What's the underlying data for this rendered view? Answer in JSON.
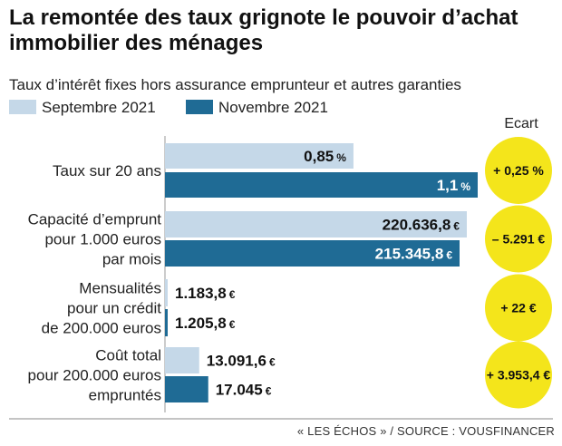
{
  "title": "La remontée des taux grignote le pouvoir d’achat immobilier des ménages",
  "subtitle": "Taux d’intérêt fixes hors assurance emprunteur et autres garanties",
  "source": "« LES ÉCHOS » / SOURCE : VOUSFINANCER",
  "colors": {
    "series1": "#c5d8e8",
    "series2": "#1f6b95",
    "ecart": "#f4e51b"
  },
  "chart_data": {
    "type": "bar",
    "orientation": "horizontal",
    "ecart_header": "Ecart",
    "series": [
      {
        "name": "Septembre 2021",
        "color": "#c5d8e8"
      },
      {
        "name": "Novembre 2021",
        "color": "#1f6b95"
      }
    ],
    "categories": [
      {
        "label_lines": [
          "Taux sur 20 ans"
        ],
        "values": [
          0.85,
          1.1
        ],
        "value_text": [
          "0,85",
          "1,1"
        ],
        "unit": "%",
        "ecart": "+ 0,25 %",
        "relative_scale": true
      },
      {
        "label_lines": [
          "Capacité d’emprunt",
          "pour 1.000 euros",
          "par mois"
        ],
        "values": [
          220636.8,
          215345.8
        ],
        "value_text": [
          "220.636,8",
          "215.345,8"
        ],
        "unit": "€",
        "ecart": "– 5.291 €",
        "relative_scale": true
      },
      {
        "label_lines": [
          "Mensualités",
          "pour un crédit",
          "de 200.000 euros"
        ],
        "values": [
          1183.8,
          1205.8
        ],
        "value_text": [
          "1.183,8",
          "1.205,8"
        ],
        "unit": "€",
        "ecart": "+ 22 €",
        "relative_scale": false
      },
      {
        "label_lines": [
          "Coût total",
          "pour 200.000 euros",
          "empruntés"
        ],
        "values": [
          13091.6,
          17045
        ],
        "value_text": [
          "13.091,6",
          "17.045"
        ],
        "unit": "€",
        "ecart": "+ 3.953,4 €",
        "relative_scale": false
      }
    ],
    "scale_note": "Taux and Capacité bars drawn relative to each other; Mensualités and Coût total on a shared euro scale with Capacité"
  }
}
